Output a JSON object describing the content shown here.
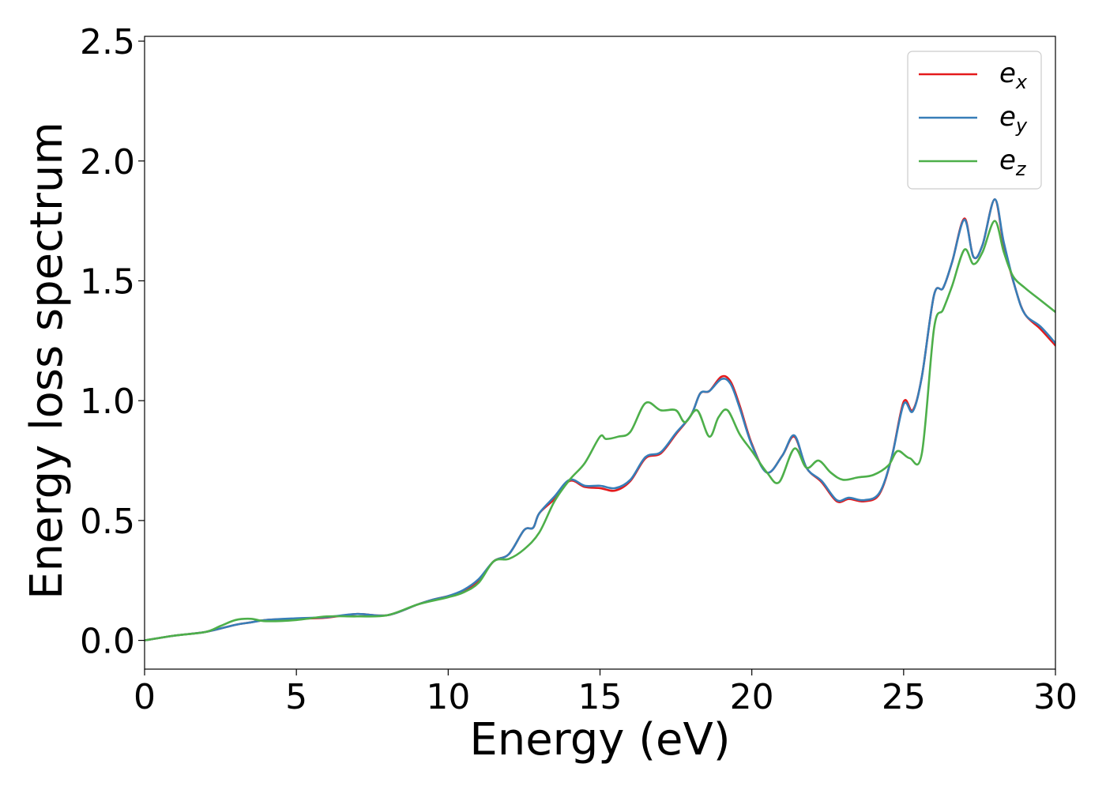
{
  "chart_data": {
    "type": "line",
    "xlabel": "Energy (eV)",
    "ylabel": "Energy loss spectrum",
    "xlim": [
      0,
      30
    ],
    "ylim": [
      -0.12,
      2.52
    ],
    "xticks": [
      0,
      5,
      10,
      15,
      20,
      25,
      30
    ],
    "yticks": [
      0.0,
      0.5,
      1.0,
      1.5,
      2.0,
      2.5
    ],
    "xtick_labels": [
      "0",
      "5",
      "10",
      "15",
      "20",
      "25",
      "30"
    ],
    "ytick_labels": [
      "0.0",
      "0.5",
      "1.0",
      "1.5",
      "2.0",
      "2.5"
    ],
    "grid": false,
    "legend_position": "top-right",
    "series": [
      {
        "name": "e_x",
        "label_main": "e",
        "label_sub": "x",
        "color": "#e41a1c",
        "x": [
          0,
          1,
          2,
          3,
          3.5,
          4,
          5,
          6,
          7,
          8,
          9,
          9.5,
          10,
          10.5,
          11,
          11.5,
          12,
          12.5,
          12.8,
          13,
          13.5,
          14,
          14.5,
          15,
          15.5,
          16,
          16.5,
          17,
          17.5,
          18,
          18.3,
          18.6,
          19,
          19.3,
          19.6,
          20,
          20.5,
          21,
          21.4,
          21.8,
          22.3,
          22.8,
          23.2,
          23.7,
          24.2,
          24.6,
          25,
          25.3,
          25.6,
          26,
          26.3,
          26.6,
          27,
          27.3,
          27.6,
          28,
          28.3,
          28.7,
          29,
          29.5,
          30
        ],
        "y": [
          0,
          0.02,
          0.035,
          0.065,
          0.075,
          0.085,
          0.09,
          0.095,
          0.11,
          0.105,
          0.15,
          0.17,
          0.185,
          0.205,
          0.25,
          0.33,
          0.36,
          0.46,
          0.47,
          0.53,
          0.59,
          0.665,
          0.64,
          0.635,
          0.625,
          0.665,
          0.76,
          0.78,
          0.86,
          0.94,
          1.03,
          1.04,
          1.1,
          1.08,
          0.98,
          0.82,
          0.7,
          0.77,
          0.85,
          0.72,
          0.66,
          0.58,
          0.59,
          0.58,
          0.61,
          0.76,
          0.995,
          0.96,
          1.1,
          1.44,
          1.47,
          1.58,
          1.76,
          1.6,
          1.65,
          1.84,
          1.65,
          1.46,
          1.36,
          1.3,
          1.23
        ]
      },
      {
        "name": "e_y",
        "label_main": "e",
        "label_sub": "y",
        "color": "#377eb8",
        "x": [
          0,
          1,
          2,
          3,
          3.5,
          4,
          5,
          6,
          7,
          8,
          9,
          9.5,
          10,
          10.5,
          11,
          11.5,
          12,
          12.5,
          12.8,
          13,
          13.5,
          14,
          14.5,
          15,
          15.5,
          16,
          16.5,
          17,
          17.5,
          18,
          18.3,
          18.6,
          19,
          19.3,
          19.6,
          20,
          20.5,
          21,
          21.4,
          21.8,
          22.3,
          22.8,
          23.2,
          23.7,
          24.2,
          24.6,
          25,
          25.3,
          25.6,
          26,
          26.3,
          26.6,
          27,
          27.3,
          27.6,
          28,
          28.3,
          28.7,
          29,
          29.5,
          30
        ],
        "y": [
          0,
          0.02,
          0.035,
          0.065,
          0.075,
          0.085,
          0.092,
          0.097,
          0.11,
          0.105,
          0.15,
          0.17,
          0.185,
          0.21,
          0.255,
          0.33,
          0.36,
          0.46,
          0.47,
          0.53,
          0.6,
          0.67,
          0.645,
          0.645,
          0.635,
          0.67,
          0.765,
          0.785,
          0.865,
          0.94,
          1.03,
          1.04,
          1.09,
          1.07,
          0.97,
          0.815,
          0.7,
          0.77,
          0.855,
          0.72,
          0.665,
          0.585,
          0.595,
          0.585,
          0.615,
          0.76,
          0.985,
          0.955,
          1.1,
          1.44,
          1.47,
          1.58,
          1.755,
          1.6,
          1.65,
          1.84,
          1.66,
          1.46,
          1.36,
          1.31,
          1.24
        ]
      },
      {
        "name": "e_z",
        "label_main": "e",
        "label_sub": "z",
        "color": "#4daf4a",
        "x": [
          0,
          1,
          2,
          2.5,
          3,
          3.5,
          4,
          5,
          6,
          7,
          8,
          9,
          10,
          10.5,
          11,
          11.5,
          12,
          12.5,
          13,
          13.5,
          14,
          14.5,
          15,
          15.2,
          15.6,
          16,
          16.5,
          17,
          17.5,
          17.8,
          18.2,
          18.6,
          18.9,
          19.2,
          19.6,
          20,
          20.5,
          20.9,
          21.4,
          21.8,
          22.2,
          22.6,
          23,
          23.5,
          24,
          24.5,
          24.8,
          25.2,
          25.6,
          26,
          26.3,
          26.6,
          27,
          27.3,
          27.6,
          28,
          28.3,
          28.6,
          29,
          29.5,
          30
        ],
        "y": [
          0,
          0.02,
          0.035,
          0.06,
          0.085,
          0.09,
          0.08,
          0.085,
          0.1,
          0.1,
          0.105,
          0.15,
          0.18,
          0.2,
          0.24,
          0.33,
          0.34,
          0.38,
          0.45,
          0.58,
          0.67,
          0.74,
          0.85,
          0.84,
          0.85,
          0.87,
          0.99,
          0.96,
          0.96,
          0.91,
          0.96,
          0.85,
          0.93,
          0.96,
          0.86,
          0.79,
          0.7,
          0.66,
          0.8,
          0.72,
          0.75,
          0.7,
          0.67,
          0.68,
          0.69,
          0.73,
          0.79,
          0.76,
          0.78,
          1.3,
          1.38,
          1.48,
          1.63,
          1.57,
          1.62,
          1.75,
          1.62,
          1.52,
          1.47,
          1.42,
          1.37
        ]
      }
    ]
  }
}
